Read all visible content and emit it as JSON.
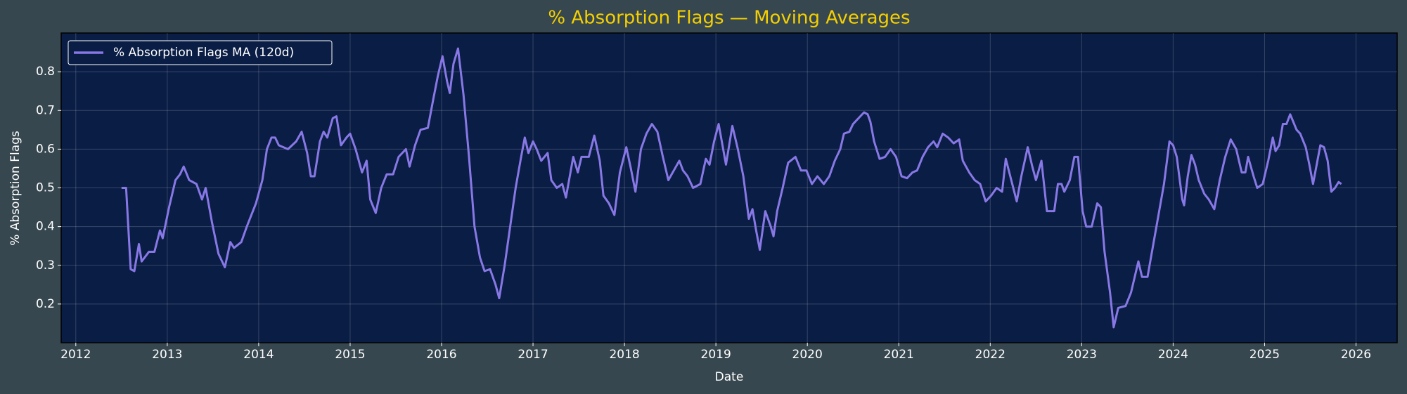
{
  "chart_data": {
    "type": "line",
    "title": "% Absorption Flags — Moving Averages",
    "xlabel": "Date",
    "ylabel": "% Absorption Flags",
    "xlim": [
      2011.84,
      2026.45
    ],
    "ylim": [
      0.1,
      0.9
    ],
    "xticks": [
      2012,
      2013,
      2014,
      2015,
      2016,
      2017,
      2018,
      2019,
      2020,
      2021,
      2022,
      2023,
      2024,
      2025,
      2026
    ],
    "yticks": [
      0.2,
      0.3,
      0.4,
      0.5,
      0.6,
      0.7,
      0.8
    ],
    "grid": true,
    "legend": "upper left",
    "x": [
      2012.5,
      2012.55,
      2012.6,
      2012.64,
      2012.69,
      2012.72,
      2012.8,
      2012.86,
      2012.92,
      2012.95,
      2013.02,
      2013.09,
      2013.14,
      2013.18,
      2013.24,
      2013.32,
      2013.38,
      2013.42,
      2013.49,
      2013.56,
      2013.63,
      2013.69,
      2013.73,
      2013.81,
      2013.87,
      2013.97,
      2014.04,
      2014.09,
      2014.14,
      2014.18,
      2014.22,
      2014.32,
      2014.41,
      2014.47,
      2014.53,
      2014.57,
      2014.61,
      2014.67,
      2014.71,
      2014.75,
      2014.81,
      2014.85,
      2014.9,
      2014.96,
      2015.0,
      2015.06,
      2015.13,
      2015.18,
      2015.22,
      2015.28,
      2015.34,
      2015.4,
      2015.47,
      2015.53,
      2015.61,
      2015.65,
      2015.71,
      2015.77,
      2015.85,
      2015.91,
      2015.96,
      2016.01,
      2016.06,
      2016.09,
      2016.13,
      2016.18,
      2016.24,
      2016.3,
      2016.36,
      2016.42,
      2016.47,
      2016.53,
      2016.59,
      2016.63,
      2016.69,
      2016.75,
      2016.81,
      2016.87,
      2016.91,
      2016.95,
      2017.0,
      2017.04,
      2017.09,
      2017.16,
      2017.2,
      2017.26,
      2017.32,
      2017.36,
      2017.44,
      2017.49,
      2017.53,
      2017.61,
      2017.67,
      2017.73,
      2017.77,
      2017.83,
      2017.89,
      2017.95,
      2018.02,
      2018.07,
      2018.12,
      2018.18,
      2018.24,
      2018.3,
      2018.36,
      2018.42,
      2018.48,
      2018.54,
      2018.6,
      2018.64,
      2018.69,
      2018.75,
      2018.83,
      2018.89,
      2018.93,
      2018.98,
      2019.03,
      2019.11,
      2019.18,
      2019.24,
      2019.3,
      2019.36,
      2019.4,
      2019.44,
      2019.48,
      2019.54,
      2019.6,
      2019.63,
      2019.67,
      2019.73,
      2019.79,
      2019.87,
      2019.93,
      2019.99,
      2020.05,
      2020.11,
      2020.18,
      2020.24,
      2020.3,
      2020.36,
      2020.4,
      2020.46,
      2020.5,
      2020.56,
      2020.62,
      2020.66,
      2020.69,
      2020.73,
      2020.79,
      2020.85,
      2020.91,
      2020.97,
      2021.03,
      2021.09,
      2021.15,
      2021.2,
      2021.26,
      2021.32,
      2021.38,
      2021.42,
      2021.48,
      2021.54,
      2021.6,
      2021.66,
      2021.7,
      2021.77,
      2021.83,
      2021.89,
      2021.95,
      2022.01,
      2022.07,
      2022.13,
      2022.17,
      2022.23,
      2022.29,
      2022.34,
      2022.41,
      2022.46,
      2022.5,
      2022.56,
      2022.62,
      2022.7,
      2022.74,
      2022.78,
      2022.81,
      2022.87,
      2022.92,
      2022.96,
      2023.01,
      2023.05,
      2023.11,
      2023.17,
      2023.21,
      2023.25,
      2023.31,
      2023.35,
      2023.4,
      2023.48,
      2023.54,
      2023.58,
      2023.62,
      2023.66,
      2023.72,
      2023.78,
      2023.84,
      2023.9,
      2023.96,
      2024.0,
      2024.04,
      2024.1,
      2024.12,
      2024.16,
      2024.2,
      2024.24,
      2024.28,
      2024.34,
      2024.39,
      2024.45,
      2024.51,
      2024.57,
      2024.63,
      2024.69,
      2024.75,
      2024.79,
      2024.82,
      2024.88,
      2024.92,
      2024.98,
      2025.04,
      2025.09,
      2025.12,
      2025.16,
      2025.2,
      2025.24,
      2025.28,
      2025.35,
      2025.39,
      2025.45,
      2025.49,
      2025.53,
      2025.57,
      2025.61,
      2025.65,
      2025.69,
      2025.73,
      2025.77,
      2025.81,
      2025.84
    ],
    "series": [
      {
        "name": "% Absorption Flags MA (120d)",
        "color": "#8878e6",
        "values": [
          0.5,
          0.5,
          0.29,
          0.285,
          0.355,
          0.31,
          0.335,
          0.335,
          0.39,
          0.37,
          0.45,
          0.52,
          0.535,
          0.555,
          0.52,
          0.51,
          0.47,
          0.5,
          0.41,
          0.33,
          0.295,
          0.36,
          0.345,
          0.36,
          0.4,
          0.46,
          0.52,
          0.6,
          0.63,
          0.63,
          0.61,
          0.6,
          0.62,
          0.645,
          0.59,
          0.53,
          0.53,
          0.62,
          0.645,
          0.63,
          0.68,
          0.685,
          0.61,
          0.63,
          0.64,
          0.6,
          0.54,
          0.57,
          0.47,
          0.435,
          0.5,
          0.535,
          0.535,
          0.58,
          0.6,
          0.555,
          0.61,
          0.65,
          0.655,
          0.73,
          0.79,
          0.84,
          0.775,
          0.745,
          0.82,
          0.86,
          0.74,
          0.58,
          0.4,
          0.32,
          0.285,
          0.29,
          0.25,
          0.215,
          0.3,
          0.4,
          0.5,
          0.58,
          0.63,
          0.59,
          0.62,
          0.6,
          0.57,
          0.59,
          0.52,
          0.5,
          0.51,
          0.475,
          0.58,
          0.54,
          0.58,
          0.58,
          0.635,
          0.57,
          0.48,
          0.46,
          0.43,
          0.54,
          0.605,
          0.55,
          0.49,
          0.6,
          0.64,
          0.665,
          0.645,
          0.58,
          0.52,
          0.545,
          0.57,
          0.545,
          0.53,
          0.5,
          0.51,
          0.575,
          0.56,
          0.62,
          0.665,
          0.56,
          0.66,
          0.6,
          0.53,
          0.42,
          0.445,
          0.39,
          0.34,
          0.44,
          0.4,
          0.375,
          0.44,
          0.5,
          0.565,
          0.58,
          0.545,
          0.545,
          0.51,
          0.53,
          0.51,
          0.53,
          0.57,
          0.6,
          0.64,
          0.645,
          0.665,
          0.68,
          0.695,
          0.69,
          0.67,
          0.62,
          0.575,
          0.58,
          0.6,
          0.58,
          0.53,
          0.525,
          0.54,
          0.545,
          0.58,
          0.605,
          0.62,
          0.605,
          0.64,
          0.63,
          0.615,
          0.625,
          0.57,
          0.54,
          0.52,
          0.51,
          0.465,
          0.48,
          0.5,
          0.49,
          0.575,
          0.52,
          0.465,
          0.53,
          0.605,
          0.555,
          0.52,
          0.57,
          0.44,
          0.44,
          0.51,
          0.51,
          0.49,
          0.52,
          0.58,
          0.58,
          0.44,
          0.4,
          0.4,
          0.46,
          0.45,
          0.335,
          0.23,
          0.14,
          0.19,
          0.195,
          0.23,
          0.27,
          0.31,
          0.27,
          0.27,
          0.35,
          0.43,
          0.51,
          0.62,
          0.61,
          0.58,
          0.47,
          0.455,
          0.53,
          0.585,
          0.56,
          0.52,
          0.485,
          0.47,
          0.445,
          0.52,
          0.58,
          0.625,
          0.6,
          0.54,
          0.54,
          0.58,
          0.53,
          0.5,
          0.51,
          0.57,
          0.63,
          0.595,
          0.61,
          0.665,
          0.665,
          0.69,
          0.65,
          0.64,
          0.605,
          0.56,
          0.51,
          0.56,
          0.61,
          0.605,
          0.57,
          0.49,
          0.5,
          0.515,
          0.51
        ]
      }
    ]
  }
}
